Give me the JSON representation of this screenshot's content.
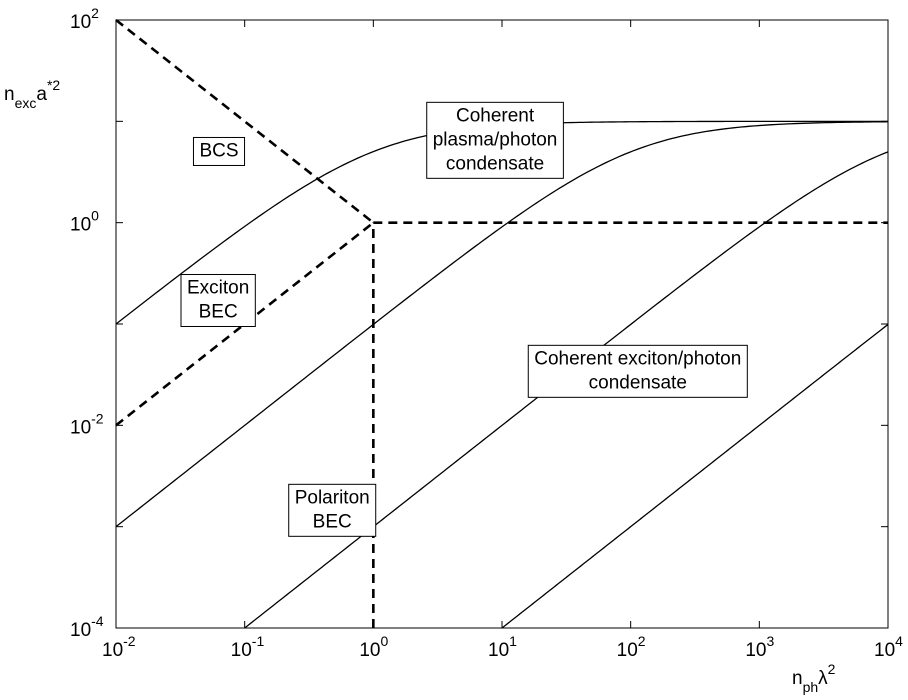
{
  "chart_data": {
    "type": "line",
    "x_scale": "log",
    "y_scale": "log",
    "xlim": [
      0.01,
      10000
    ],
    "ylim": [
      0.0001,
      100
    ],
    "grid": false,
    "xlabel": {
      "base": "n",
      "sub": "ph",
      "tail": "λ",
      "sup": "2"
    },
    "ylabel": {
      "base": "n",
      "sub": "exc",
      "tail": "a",
      "sup": "*2"
    },
    "x_ticks": [
      {
        "base": "10",
        "exp": "-2",
        "value": 0.01
      },
      {
        "base": "10",
        "exp": "-1",
        "value": 0.1
      },
      {
        "base": "10",
        "exp": "0",
        "value": 1
      },
      {
        "base": "10",
        "exp": "1",
        "value": 10
      },
      {
        "base": "10",
        "exp": "2",
        "value": 100
      },
      {
        "base": "10",
        "exp": "3",
        "value": 1000
      },
      {
        "base": "10",
        "exp": "4",
        "value": 10000
      }
    ],
    "y_ticks": [
      {
        "base": "10",
        "exp": "-4",
        "value": 0.0001
      },
      {
        "base": "10",
        "exp": "-2",
        "value": 0.01
      },
      {
        "base": "10",
        "exp": "0",
        "value": 1
      },
      {
        "base": "10",
        "exp": "2",
        "value": 100
      }
    ],
    "series": [
      {
        "style": "solid",
        "saturation": 10,
        "x": [
          0.01,
          0.1,
          0.316,
          1,
          3.16,
          10,
          31.6,
          100,
          1000,
          10000
        ],
        "y": [
          0.1,
          0.909,
          2.4,
          5,
          7.6,
          9.09,
          9.69,
          9.9,
          9.99,
          10
        ]
      },
      {
        "style": "solid",
        "saturation": 10,
        "x": [
          0.01,
          0.1,
          1,
          10,
          31.6,
          100,
          316,
          1000,
          3162,
          10000
        ],
        "y": [
          0.001,
          0.01,
          0.1,
          0.99,
          2.4,
          5,
          7.6,
          9.09,
          9.69,
          9.9
        ]
      },
      {
        "style": "solid",
        "saturation": 10,
        "x": [
          0.1,
          1,
          10,
          100,
          1000,
          3162,
          10000
        ],
        "y": [
          0.0001,
          0.001,
          0.01,
          0.1,
          0.99,
          2.4,
          5
        ]
      },
      {
        "style": "solid",
        "saturation": 10,
        "x": [
          10,
          100,
          1000,
          10000
        ],
        "y": [
          0.0001,
          0.001,
          0.01,
          0.0991
        ]
      },
      {
        "style": "dashed",
        "x": [
          0.01,
          1
        ],
        "y": [
          100,
          1
        ]
      },
      {
        "style": "dashed",
        "x": [
          0.01,
          1
        ],
        "y": [
          0.01,
          1
        ]
      },
      {
        "style": "dashed",
        "x": [
          1,
          10000
        ],
        "y": [
          1,
          1
        ]
      },
      {
        "style": "dashed",
        "x": [
          1,
          1
        ],
        "y": [
          0.0001,
          1
        ]
      }
    ],
    "annotations": [
      {
        "lines": [
          "BCS"
        ],
        "x": 0.04,
        "y": 4.5
      },
      {
        "lines": [
          "Exciton",
          "BEC"
        ],
        "x": 0.032,
        "y": 0.2
      },
      {
        "lines": [
          "Polariton",
          "BEC"
        ],
        "x": 0.22,
        "y": 0.0017
      },
      {
        "lines": [
          "Coherent",
          "plasma/photon",
          "condensate"
        ],
        "x": 2.6,
        "y": 10
      },
      {
        "lines": [
          "Coherent exciton/photon",
          "condensate"
        ],
        "x": 16,
        "y": 0.04
      }
    ]
  }
}
